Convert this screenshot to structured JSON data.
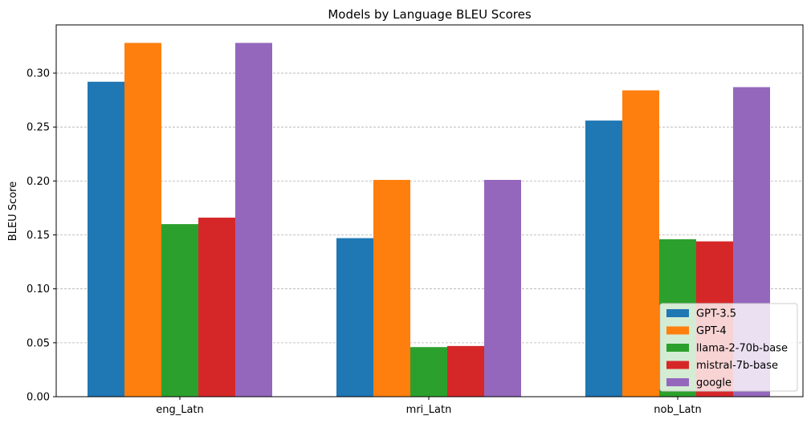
{
  "chart_data": {
    "type": "bar",
    "title": "Models by Language BLEU Scores",
    "xlabel": "",
    "ylabel": "BLEU Score",
    "ylim": [
      0,
      0.3447
    ],
    "yticks": [
      "0.00",
      "0.05",
      "0.10",
      "0.15",
      "0.20",
      "0.25",
      "0.30"
    ],
    "grid": "y-dashed",
    "legend_position": "lower-right",
    "categories": [
      "eng_Latn",
      "mri_Latn",
      "nob_Latn"
    ],
    "series": [
      {
        "name": "GPT-3.5",
        "color": "#1f77b4",
        "values": [
          0.292,
          0.147,
          0.256
        ]
      },
      {
        "name": "GPT-4",
        "color": "#ff7f0e",
        "values": [
          0.328,
          0.201,
          0.284
        ]
      },
      {
        "name": "llama-2-70b-base",
        "color": "#2ca02c",
        "values": [
          0.16,
          0.046,
          0.146
        ]
      },
      {
        "name": "mistral-7b-base",
        "color": "#d62728",
        "values": [
          0.166,
          0.047,
          0.144
        ]
      },
      {
        "name": "google",
        "color": "#9467bd",
        "values": [
          0.328,
          0.201,
          0.287
        ]
      }
    ]
  }
}
